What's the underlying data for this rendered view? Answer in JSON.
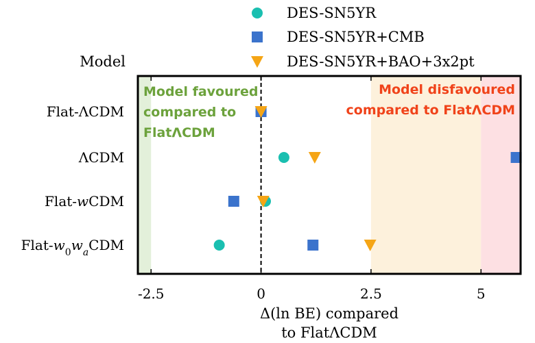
{
  "chart_data": {
    "type": "scatter",
    "title": "",
    "xlabel_line1": "Δ(ln BE) compared",
    "xlabel_line2": "to FlatΛCDM",
    "ylabel": "Model",
    "xlim": [
      -2.8,
      5.9
    ],
    "xticks": [
      -2.5,
      0,
      2.5,
      5
    ],
    "xtick_labels": [
      "-2.5",
      "0",
      "2.5",
      "5"
    ],
    "categories": [
      "Flat-ΛCDM",
      "ΛCDM",
      "Flat-wCDM",
      "Flat-w0waCDM"
    ],
    "reference_line_x": 0,
    "series": [
      {
        "name": "DES-SN5YR",
        "marker": "circle",
        "color": "#1abfb0",
        "values": [
          0.0,
          0.52,
          0.1,
          -0.95
        ]
      },
      {
        "name": "DES-SN5YR+CMB",
        "marker": "square",
        "color": "#3b73cc",
        "values": [
          0.0,
          5.8,
          -0.62,
          1.18
        ]
      },
      {
        "name": "DES-SN5YR+BAO+3x2pt",
        "marker": "triangle-down",
        "color": "#f5a515",
        "values": [
          0.0,
          1.22,
          0.05,
          2.48
        ]
      }
    ],
    "regions": [
      {
        "from": -2.8,
        "to": -2.5,
        "color": "#e3f0da"
      },
      {
        "from": 2.5,
        "to": 5.0,
        "color": "#fdf1dc"
      },
      {
        "from": 5.0,
        "to": 5.9,
        "color": "#fde0e3"
      }
    ],
    "annotations": {
      "favoured": {
        "lines": [
          "Model favoured",
          "compared to",
          "FlatΛCDM"
        ],
        "color": "#6ca23c"
      },
      "disfavoured": {
        "lines": [
          "Model disfavoured",
          "compared to FlatΛCDM"
        ],
        "color": "#f0431a"
      }
    },
    "legend_position": "top-center"
  }
}
